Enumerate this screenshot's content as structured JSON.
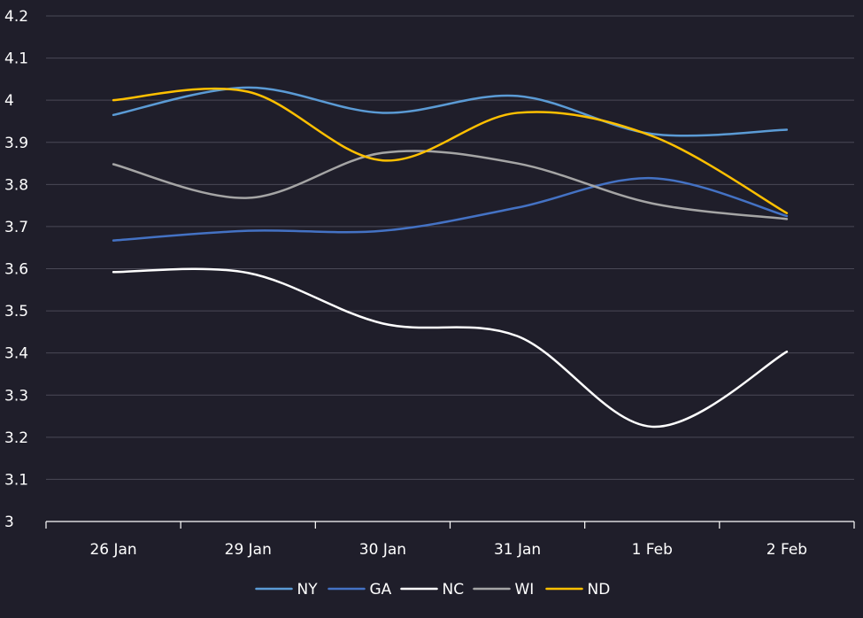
{
  "chart_data": {
    "type": "line",
    "smooth": true,
    "categories": [
      "26 Jan",
      "29 Jan",
      "30 Jan",
      "31 Jan",
      "1 Feb",
      "2 Feb"
    ],
    "ylim": [
      3,
      4.2
    ],
    "yticks": [
      3,
      3.1,
      3.2,
      3.3,
      3.4,
      3.5,
      3.6,
      3.7,
      3.8,
      3.9,
      4,
      4.1,
      4.2
    ],
    "ytick_labels": [
      "3",
      "3.1",
      "3.2",
      "3.3",
      "3.4",
      "3.5",
      "3.6",
      "3.7",
      "3.8",
      "3.9",
      "4",
      "4.1",
      "4.2"
    ],
    "grid": true,
    "legend_position": "bottom",
    "series": [
      {
        "name": "NY",
        "color": "#5b9bd5",
        "values": [
          3.965,
          4.03,
          3.97,
          4.01,
          3.92,
          3.93
        ]
      },
      {
        "name": "GA",
        "color": "#4472c4",
        "values": [
          3.667,
          3.69,
          3.69,
          3.745,
          3.815,
          3.725
        ]
      },
      {
        "name": "NC",
        "color": "#ffffff",
        "values": [
          3.592,
          3.59,
          3.47,
          3.44,
          3.225,
          3.403
        ]
      },
      {
        "name": "WI",
        "color": "#a5a5a5",
        "values": [
          3.848,
          3.768,
          3.875,
          3.85,
          3.755,
          3.718
        ]
      },
      {
        "name": "ND",
        "color": "#ffc000",
        "values": [
          4.0,
          4.02,
          3.857,
          3.97,
          3.915,
          3.732
        ]
      }
    ]
  }
}
